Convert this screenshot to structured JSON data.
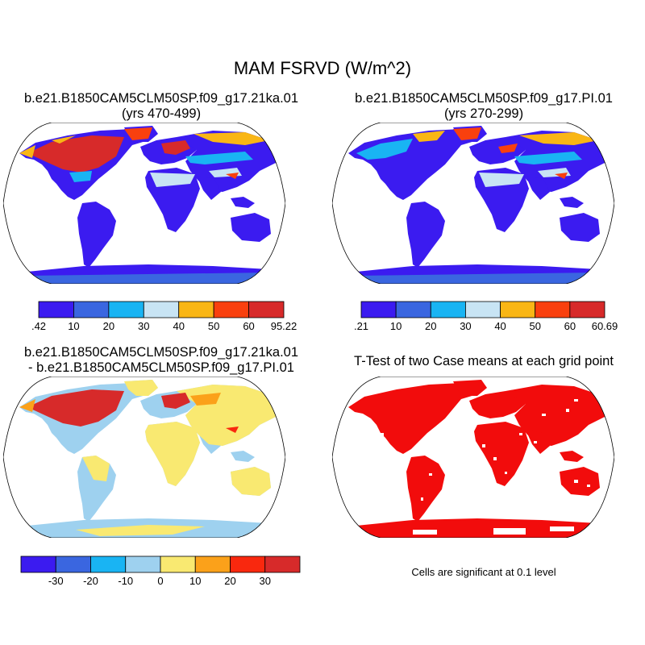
{
  "main_title": "MAM FSRVD (W/m^2)",
  "panels": {
    "top_left": {
      "title_line1": "b.e21.B1850CAM5CLM50SP.f09_g17.21ka.01",
      "title_line2": "(yrs 470-499)",
      "colorbar": {
        "labels": [
          ".42",
          "10",
          "20",
          "30",
          "40",
          "50",
          "60",
          "95.22"
        ],
        "colors": [
          "#3b1bf0",
          "#3a66e0",
          "#19b4f3",
          "#c8e4f4",
          "#f9b615",
          "#f9400e",
          "#d72a2a"
        ]
      }
    },
    "top_right": {
      "title_line1": "b.e21.B1850CAM5CLM50SP.f09_g17.PI.01",
      "title_line2": "(yrs 270-299)",
      "colorbar": {
        "labels": [
          ".21",
          "10",
          "20",
          "30",
          "40",
          "50",
          "60",
          "60.69"
        ],
        "colors": [
          "#3b1bf0",
          "#3a66e0",
          "#19b4f3",
          "#c8e4f4",
          "#f9b615",
          "#f9400e",
          "#d72a2a"
        ]
      }
    },
    "bottom_left": {
      "title_line1": "b.e21.B1850CAM5CLM50SP.f09_g17.21ka.01",
      "title_line2": "- b.e21.B1850CAM5CLM50SP.f09_g17.PI.01",
      "colorbar": {
        "labels": [
          "-30",
          "-20",
          "-10",
          "0",
          "10",
          "20",
          "30"
        ],
        "colors": [
          "#3b1bf0",
          "#3a66e0",
          "#19b4f3",
          "#9ed1ef",
          "#f9e971",
          "#fba11a",
          "#f9280e",
          "#d72a2a"
        ]
      }
    },
    "bottom_right": {
      "title_line1": "T-Test of two Case means at each grid point",
      "note": "Cells are significant at 0.1 level"
    }
  }
}
